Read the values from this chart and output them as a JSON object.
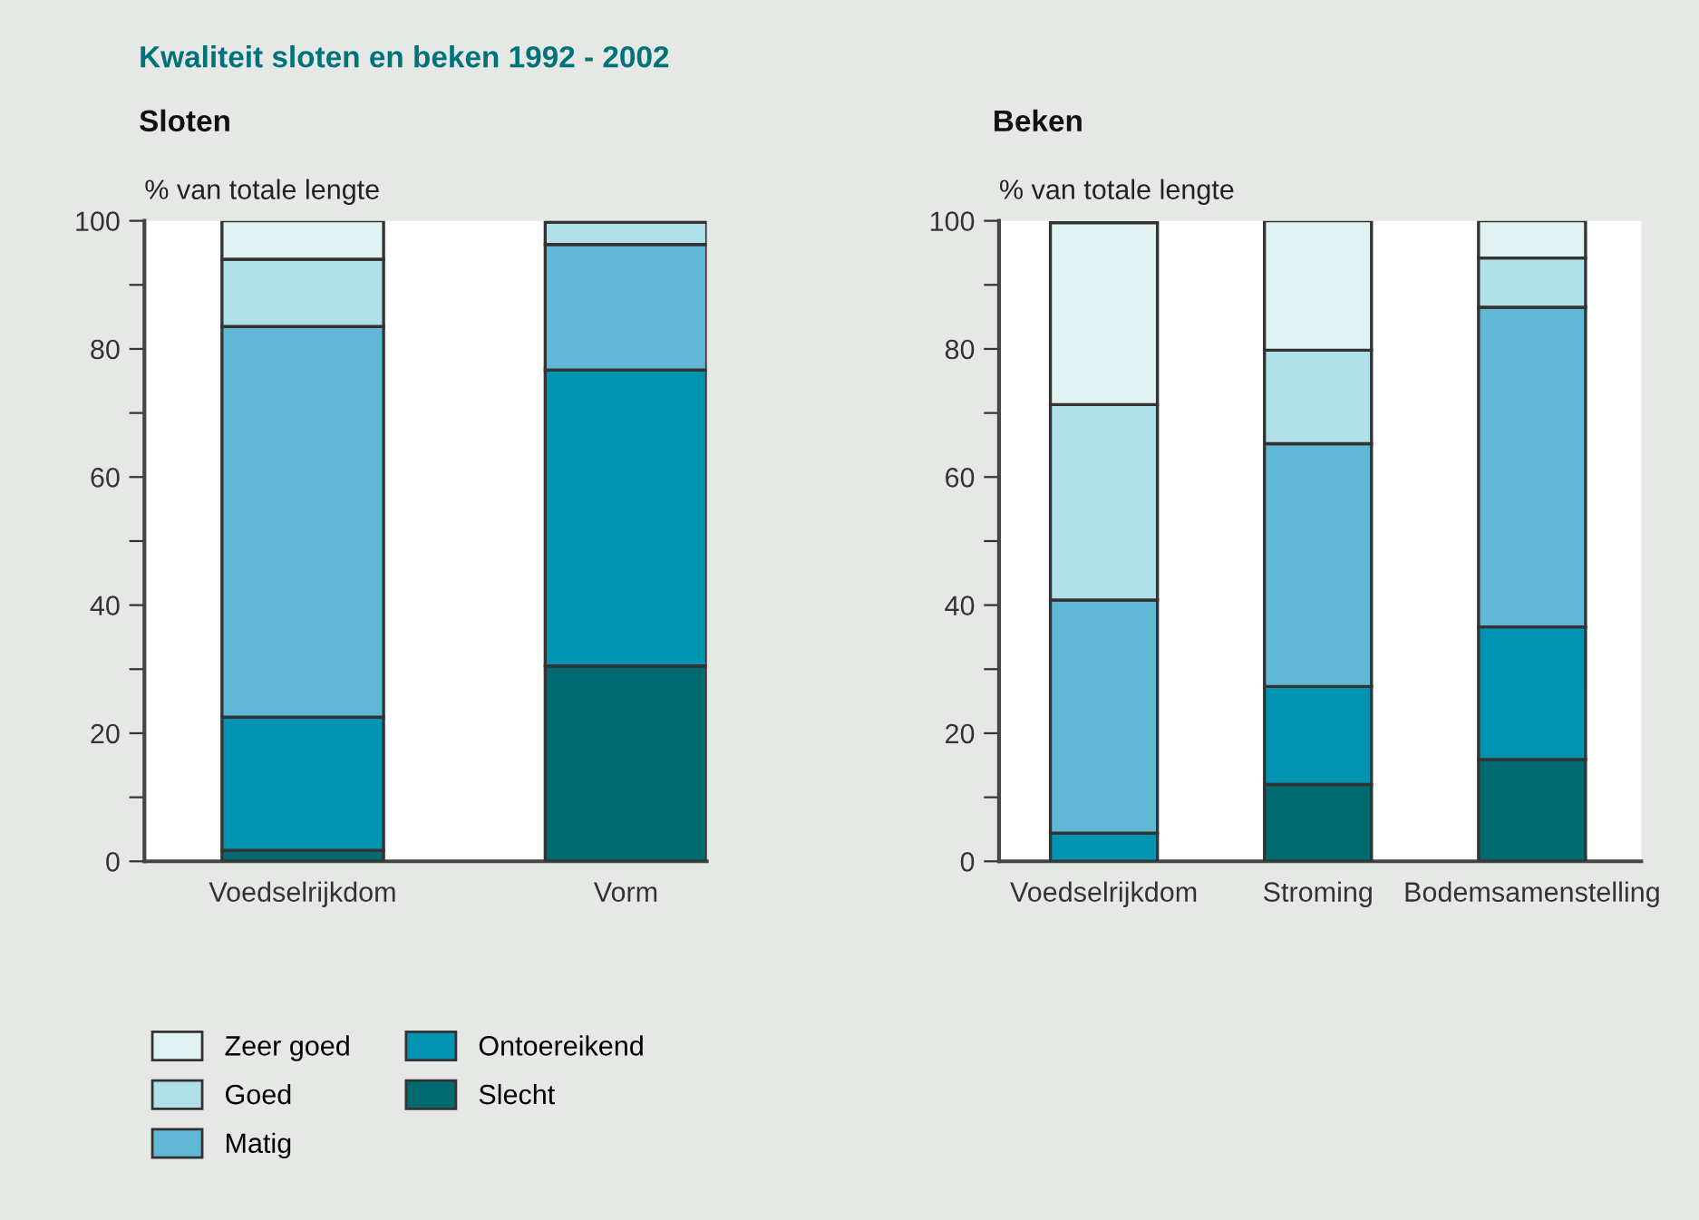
{
  "chart_data": [
    {
      "type": "bar",
      "stacked": true,
      "title": "Kwaliteit sloten en beken 1992 - 2002",
      "subtitle": "Sloten",
      "ylabel": "% van totale lengte",
      "categories": [
        "Voedselrijkdom",
        "Vorm"
      ],
      "series": [
        {
          "name": "Slecht",
          "color": "#006a70",
          "values": [
            1.7,
            30.5
          ]
        },
        {
          "name": "Ontoereikend",
          "color": "#0094b2",
          "values": [
            20.8,
            46.2
          ]
        },
        {
          "name": "Matig",
          "color": "#60b8d4",
          "values": [
            61,
            19.6
          ]
        },
        {
          "name": "Goed",
          "color": "#b0e0e8",
          "values": [
            10.5,
            3.5
          ]
        },
        {
          "name": "Zeer goed",
          "color": "#e0f2f2",
          "values": [
            6,
            null
          ]
        }
      ],
      "ylim": [
        0,
        100
      ],
      "yticks": [
        0,
        {
          "value": 10,
          "label": null
        },
        20,
        {
          "value": 30,
          "label": null
        },
        40,
        {
          "value": 50,
          "label": null
        },
        60,
        {
          "value": 70,
          "label": null
        },
        80,
        {
          "value": 90,
          "label": null
        },
        100
      ],
      "grid": false,
      "legend": "bottom"
    },
    {
      "type": "bar",
      "stacked": true,
      "subtitle": "Beken",
      "ylabel": "% van totale lengte",
      "categories": [
        "Voedselrijkdom",
        "Stroming",
        "Bodemsamenstelling"
      ],
      "series": [
        {
          "color": "#006a70",
          "values": [
            null,
            12,
            15.9
          ]
        },
        {
          "color": "#0094b2",
          "values": [
            4.4,
            15.3,
            20.7
          ]
        },
        {
          "color": "#60b8d4",
          "values": [
            36.4,
            37.9,
            49.9
          ]
        },
        {
          "color": "#b0e0e8",
          "values": [
            30.5,
            14.6,
            7.7
          ]
        },
        {
          "color": "#e0f2f2",
          "values": [
            28.4,
            20.2,
            5.8
          ]
        }
      ],
      "ylim": [
        0,
        100
      ],
      "yticks": [
        0,
        {
          "value": 10,
          "label": null
        },
        20,
        {
          "value": 30,
          "label": null
        },
        40,
        {
          "value": 50,
          "label": null
        },
        60,
        {
          "value": 70,
          "label": null
        },
        80,
        {
          "value": 90,
          "label": null
        },
        100
      ],
      "grid": false,
      "legend": false
    }
  ]
}
